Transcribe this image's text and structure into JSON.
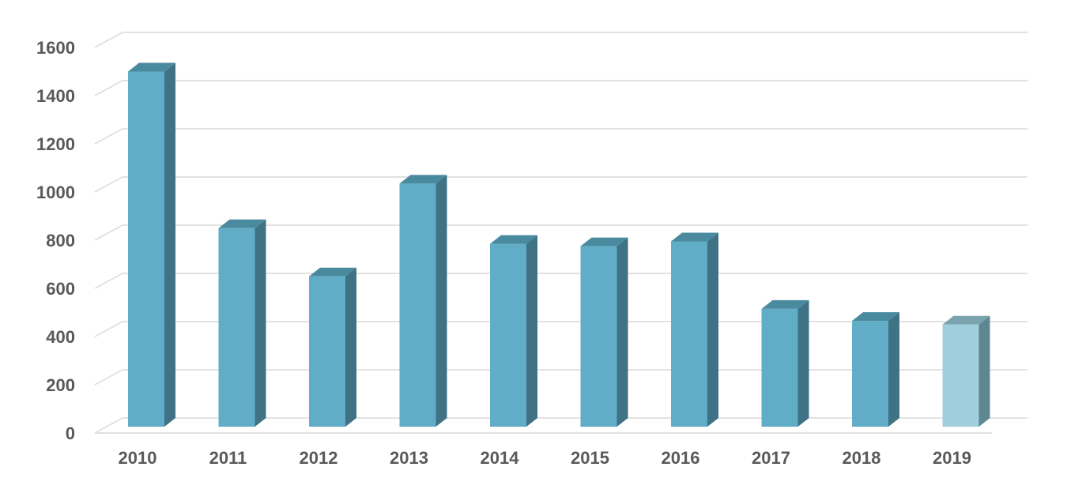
{
  "chart_data": {
    "type": "bar",
    "style": "3d-column",
    "title": "",
    "xlabel": "",
    "ylabel": "",
    "categories": [
      "2010",
      "2011",
      "2012",
      "2013",
      "2014",
      "2015",
      "2016",
      "2017",
      "2018",
      "2019"
    ],
    "values": [
      1500,
      850,
      650,
      1035,
      785,
      775,
      795,
      515,
      465,
      450
    ],
    "highlighted_category": "2019",
    "ylim": [
      0,
      1600
    ],
    "yticks": [
      "0",
      "200",
      "400",
      "600",
      "800",
      "1000",
      "1200",
      "1400",
      "1600"
    ],
    "grid": true,
    "legend": "none",
    "colors": {
      "bar_front": "#61acc6",
      "bar_side": "#3e7284",
      "bar_top": "#4a8a9f",
      "highlight_front": "#a0cedd",
      "highlight_side": "#5f8791",
      "highlight_top": "#7ba3ae",
      "grid": "#d9d9d9",
      "axis_text": "#595959"
    }
  }
}
